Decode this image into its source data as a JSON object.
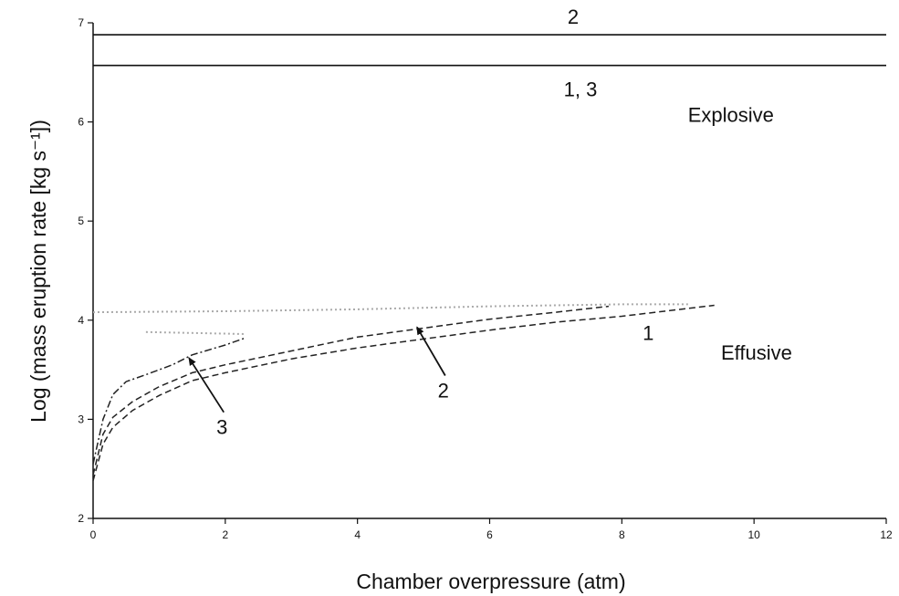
{
  "chart_data": {
    "type": "line",
    "title": "",
    "xlabel": "Chamber overpressure (atm)",
    "ylabel": "Log (mass eruption rate [kg s⁻¹])",
    "xlim": [
      0,
      12
    ],
    "ylim": [
      2,
      7
    ],
    "x_ticks": [
      "0",
      "2",
      "4",
      "6",
      "8",
      "10",
      "12"
    ],
    "y_ticks": [
      "2",
      "3",
      "4",
      "5",
      "6",
      "7"
    ],
    "grid": false,
    "thresholds": [
      {
        "label": "2",
        "y": 6.88
      },
      {
        "label": "1, 3",
        "y": 6.57
      }
    ],
    "region_labels": [
      {
        "text": "Explosive",
        "x": 9.0,
        "y": 6.0
      },
      {
        "text": "Effusive",
        "x": 9.5,
        "y": 3.6
      }
    ],
    "series": [
      {
        "label": "1",
        "style": "dashed",
        "color": "#222222",
        "x": [
          0.0,
          0.15,
          0.3,
          0.6,
          1.0,
          1.5,
          2.0,
          3.0,
          4.0,
          5.0,
          6.0,
          7.0,
          8.0,
          9.4
        ],
        "y": [
          2.38,
          2.75,
          2.92,
          3.09,
          3.24,
          3.39,
          3.47,
          3.61,
          3.72,
          3.81,
          3.9,
          3.98,
          4.04,
          4.15
        ]
      },
      {
        "label": "2",
        "style": "dashed",
        "color": "#222222",
        "x": [
          0.0,
          0.15,
          0.3,
          0.6,
          1.0,
          1.5,
          2.0,
          3.0,
          4.0,
          5.0,
          6.0,
          7.0,
          7.8
        ],
        "y": [
          2.44,
          2.85,
          3.02,
          3.18,
          3.33,
          3.47,
          3.55,
          3.69,
          3.83,
          3.92,
          4.01,
          4.08,
          4.14
        ]
      },
      {
        "label": "3",
        "style": "dash-dot",
        "color": "#222222",
        "x": [
          0.0,
          0.15,
          0.3,
          0.5,
          0.8,
          1.2,
          1.5,
          2.0,
          2.3
        ],
        "y": [
          2.55,
          3.0,
          3.25,
          3.38,
          3.45,
          3.55,
          3.65,
          3.75,
          3.82
        ]
      },
      {
        "label": "",
        "style": "dotted",
        "color": "#aaaaaa",
        "x": [
          0.0,
          2.0,
          4.0,
          6.0,
          8.0,
          9.0
        ],
        "y": [
          4.08,
          4.09,
          4.11,
          4.14,
          4.16,
          4.16
        ]
      },
      {
        "label": "",
        "style": "dotted",
        "color": "#aaaaaa",
        "x": [
          0.8,
          2.3
        ],
        "y": [
          3.88,
          3.86
        ]
      }
    ],
    "annotations": [
      {
        "text": "1",
        "x": 8.4,
        "y": 3.8,
        "arrow": false
      },
      {
        "text": "2",
        "x": 5.3,
        "y": 3.22,
        "arrow": true,
        "arrow_to": [
          4.9,
          3.93
        ]
      },
      {
        "text": "3",
        "x": 1.95,
        "y": 2.85,
        "arrow": true,
        "arrow_to": [
          1.45,
          3.62
        ]
      }
    ]
  }
}
